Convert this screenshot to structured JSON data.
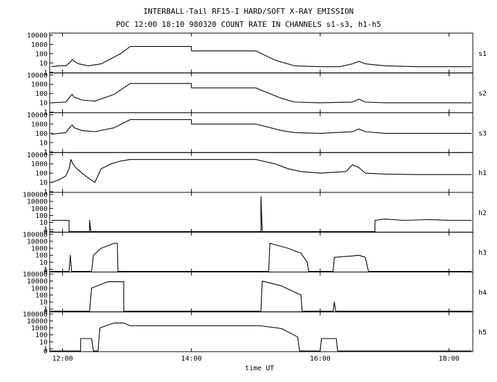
{
  "chart_data": {
    "type": "line",
    "title": "INTERBALL-Tail RF15-I HARD/SOFT X-RAY EMISSION",
    "subtitle": "POC 12:00 18:10 980320  COUNT RATE IN CHANNELS s1-s3, h1-h5",
    "xlabel": "time UT",
    "xlim": [
      11.8,
      18.37
    ],
    "x_ticks": [
      12,
      14,
      16,
      18
    ],
    "x_tick_labels": [
      "12:00",
      "14:00",
      "16:00",
      "18:00"
    ],
    "yscale": "log",
    "grid": false,
    "legend": "none",
    "panels": [
      {
        "label": "s1",
        "ylim": [
          1,
          10000
        ],
        "y_tick_labels": [
          "1",
          "10",
          "100",
          "1000",
          "10000"
        ],
        "points": [
          [
            11.83,
            4
          ],
          [
            11.95,
            5
          ],
          [
            12.05,
            5
          ],
          [
            12.12,
            12
          ],
          [
            12.15,
            25
          ],
          [
            12.18,
            15
          ],
          [
            12.25,
            8
          ],
          [
            12.4,
            5
          ],
          [
            12.6,
            8
          ],
          [
            12.9,
            100
          ],
          [
            13.05,
            600
          ],
          [
            13.1,
            600
          ],
          [
            14.0,
            600
          ],
          [
            14.0,
            200
          ],
          [
            14.5,
            200
          ],
          [
            15.0,
            200
          ],
          [
            15.3,
            20
          ],
          [
            15.6,
            5
          ],
          [
            16.0,
            4
          ],
          [
            16.3,
            4
          ],
          [
            16.5,
            8
          ],
          [
            16.6,
            15
          ],
          [
            16.7,
            8
          ],
          [
            17.0,
            5
          ],
          [
            17.5,
            4
          ],
          [
            18.0,
            4
          ],
          [
            18.35,
            4
          ]
        ]
      },
      {
        "label": "s2",
        "ylim": [
          1,
          10000
        ],
        "y_tick_labels": [
          "1",
          "10",
          "100",
          "1000",
          "10000"
        ],
        "points": [
          [
            11.83,
            10
          ],
          [
            12.05,
            12
          ],
          [
            12.12,
            50
          ],
          [
            12.15,
            80
          ],
          [
            12.18,
            40
          ],
          [
            12.3,
            20
          ],
          [
            12.5,
            15
          ],
          [
            12.8,
            80
          ],
          [
            13.05,
            1200
          ],
          [
            14.0,
            1200
          ],
          [
            14.0,
            400
          ],
          [
            15.0,
            400
          ],
          [
            15.4,
            30
          ],
          [
            15.6,
            12
          ],
          [
            16.0,
            10
          ],
          [
            16.5,
            12
          ],
          [
            16.6,
            25
          ],
          [
            16.7,
            12
          ],
          [
            17.0,
            10
          ],
          [
            17.5,
            10
          ],
          [
            18.0,
            10
          ],
          [
            18.35,
            10
          ]
        ]
      },
      {
        "label": "s3",
        "ylim": [
          1,
          10000
        ],
        "y_tick_labels": [
          "1",
          "10",
          "100",
          "1000",
          "10000"
        ],
        "points": [
          [
            11.83,
            80
          ],
          [
            12.05,
            120
          ],
          [
            12.12,
            500
          ],
          [
            12.15,
            800
          ],
          [
            12.18,
            400
          ],
          [
            12.3,
            200
          ],
          [
            12.5,
            150
          ],
          [
            12.8,
            400
          ],
          [
            13.05,
            3000
          ],
          [
            14.0,
            3000
          ],
          [
            14.0,
            1000
          ],
          [
            15.0,
            1000
          ],
          [
            15.4,
            200
          ],
          [
            15.6,
            120
          ],
          [
            16.0,
            100
          ],
          [
            16.5,
            150
          ],
          [
            16.6,
            300
          ],
          [
            16.7,
            150
          ],
          [
            17.0,
            100
          ],
          [
            17.5,
            100
          ],
          [
            18.0,
            100
          ],
          [
            18.35,
            100
          ]
        ]
      },
      {
        "label": "h1",
        "ylim": [
          1,
          10000
        ],
        "y_tick_labels": [
          "1",
          "10",
          "100",
          "1000",
          "10000"
        ],
        "points": [
          [
            11.83,
            10
          ],
          [
            11.95,
            20
          ],
          [
            12.05,
            50
          ],
          [
            12.1,
            300
          ],
          [
            12.13,
            3000
          ],
          [
            12.16,
            1000
          ],
          [
            12.22,
            300
          ],
          [
            12.3,
            100
          ],
          [
            12.4,
            30
          ],
          [
            12.5,
            10
          ],
          [
            12.6,
            300
          ],
          [
            12.75,
            1000
          ],
          [
            12.9,
            2000
          ],
          [
            13.05,
            3000
          ],
          [
            14.0,
            3000
          ],
          [
            15.0,
            3000
          ],
          [
            15.3,
            1000
          ],
          [
            15.5,
            300
          ],
          [
            15.7,
            150
          ],
          [
            16.0,
            100
          ],
          [
            16.4,
            150
          ],
          [
            16.5,
            800
          ],
          [
            16.6,
            400
          ],
          [
            16.7,
            100
          ],
          [
            17.0,
            80
          ],
          [
            17.5,
            70
          ],
          [
            18.0,
            70
          ],
          [
            18.35,
            70
          ]
        ]
      },
      {
        "label": "h2",
        "ylim": [
          0.5,
          100000
        ],
        "y_tick_labels": [
          "0",
          "1",
          "10",
          "100",
          "1000",
          "10000",
          "100000"
        ],
        "points": [
          [
            11.83,
            20
          ],
          [
            12.1,
            20
          ],
          [
            12.1,
            0.5
          ],
          [
            12.42,
            0.5
          ],
          [
            12.42,
            20
          ],
          [
            12.44,
            0.5
          ],
          [
            15.08,
            0.5
          ],
          [
            15.08,
            50000
          ],
          [
            15.1,
            0.5
          ],
          [
            16.85,
            0.5
          ],
          [
            16.85,
            20
          ],
          [
            17.0,
            30
          ],
          [
            17.3,
            20
          ],
          [
            17.7,
            25
          ],
          [
            18.0,
            20
          ],
          [
            18.35,
            20
          ]
        ]
      },
      {
        "label": "h3",
        "ylim": [
          0.5,
          100000
        ],
        "y_tick_labels": [
          "0",
          "1",
          "10",
          "100",
          "1000",
          "10000",
          "100000"
        ],
        "points": [
          [
            11.83,
            0.5
          ],
          [
            12.1,
            0.5
          ],
          [
            12.12,
            100
          ],
          [
            12.14,
            0.5
          ],
          [
            12.45,
            0.5
          ],
          [
            12.48,
            100
          ],
          [
            12.6,
            1000
          ],
          [
            12.8,
            5000
          ],
          [
            12.85,
            5000
          ],
          [
            12.86,
            0.5
          ],
          [
            15.2,
            0.5
          ],
          [
            15.22,
            5000
          ],
          [
            15.5,
            1000
          ],
          [
            15.7,
            200
          ],
          [
            15.8,
            10
          ],
          [
            15.82,
            0.5
          ],
          [
            16.2,
            0.5
          ],
          [
            16.22,
            50
          ],
          [
            16.5,
            80
          ],
          [
            16.6,
            100
          ],
          [
            16.7,
            50
          ],
          [
            16.75,
            0.5
          ],
          [
            18.35,
            0.5
          ]
        ]
      },
      {
        "label": "h4",
        "ylim": [
          0.5,
          100000
        ],
        "y_tick_labels": [
          "0",
          "1",
          "10",
          "100",
          "1000",
          "10000",
          "100000"
        ],
        "points": [
          [
            11.83,
            0.5
          ],
          [
            12.42,
            0.5
          ],
          [
            12.45,
            1000
          ],
          [
            12.7,
            8000
          ],
          [
            12.95,
            8000
          ],
          [
            12.95,
            0.5
          ],
          [
            15.08,
            0.5
          ],
          [
            15.1,
            10000
          ],
          [
            15.4,
            2000
          ],
          [
            15.7,
            100
          ],
          [
            15.72,
            0.5
          ],
          [
            16.2,
            0.5
          ],
          [
            16.22,
            10
          ],
          [
            16.24,
            0.5
          ],
          [
            18.35,
            0.5
          ]
        ]
      },
      {
        "label": "h5",
        "ylim": [
          0.5,
          100000
        ],
        "y_tick_labels": [
          "0",
          "1",
          "10",
          "100",
          "1000",
          "10000",
          "100000"
        ],
        "points": [
          [
            11.83,
            0.5
          ],
          [
            12.28,
            0.5
          ],
          [
            12.28,
            30
          ],
          [
            12.45,
            30
          ],
          [
            12.48,
            0.5
          ],
          [
            12.55,
            0.5
          ],
          [
            12.58,
            1000
          ],
          [
            12.8,
            5000
          ],
          [
            12.95,
            5000
          ],
          [
            13.05,
            2000
          ],
          [
            14.0,
            2000
          ],
          [
            15.08,
            2000
          ],
          [
            15.4,
            800
          ],
          [
            15.65,
            50
          ],
          [
            15.68,
            0.5
          ],
          [
            16.0,
            0.5
          ],
          [
            16.02,
            30
          ],
          [
            16.25,
            30
          ],
          [
            16.27,
            0.5
          ],
          [
            18.35,
            0.5
          ]
        ]
      }
    ]
  }
}
